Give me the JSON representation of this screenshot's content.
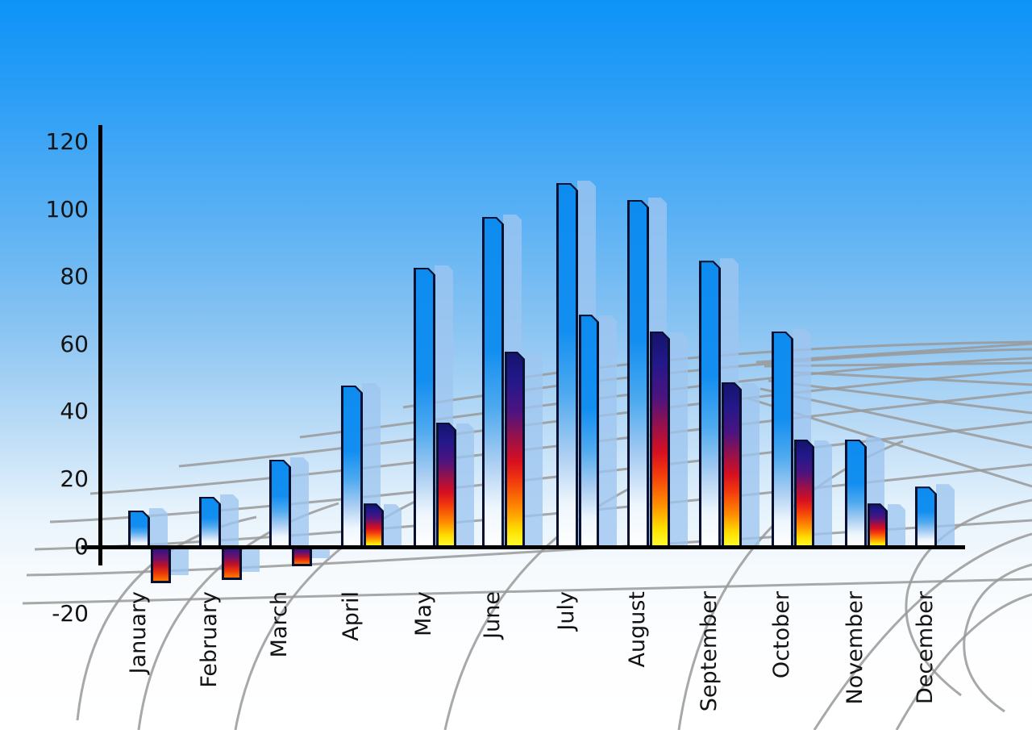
{
  "chart_data": {
    "type": "bar",
    "title": "",
    "xlabel": "",
    "ylabel": "",
    "categories": [
      "January",
      "February",
      "March",
      "April",
      "May",
      "June",
      "July",
      "August",
      "September",
      "October",
      "November",
      "December"
    ],
    "series": [
      {
        "name": "primary-blue-bars",
        "values": [
          11,
          15,
          26,
          48,
          83,
          98,
          108,
          103,
          85,
          64,
          32,
          18
        ]
      },
      {
        "name": "secondary-bars",
        "values": [
          -10,
          -9,
          -5,
          13,
          37,
          58,
          69,
          64,
          49,
          32,
          13,
          null
        ],
        "bar_styles": [
          "fire",
          "fire",
          "fire",
          "fire",
          "fire",
          "fire",
          "blue",
          "fire",
          "fire",
          "fire",
          "fire",
          null
        ]
      }
    ],
    "y_ticks": [
      120,
      100,
      80,
      60,
      40,
      20,
      0,
      -20
    ],
    "ylim": [
      -20,
      125
    ],
    "legend_position": "none",
    "grid": "decorative gray perspective mesh behind bars",
    "notes": "each bar has a translucent light-blue offset shadow copy; Jan-Mar secondary bars are negative"
  },
  "colors": {
    "sky_top": "#0d93f8",
    "sky_bottom": "#ffffff",
    "bar_blue": "#0d8cf0",
    "bar_outline": "#0a1030",
    "bar_shadow": "#9ec5f0",
    "fire_navy": "#1a1a80",
    "fire_red": "#e81414",
    "fire_yellow": "#ffee00",
    "grid_line": "#999999",
    "axis": "#000000",
    "label_text": "#131313"
  }
}
